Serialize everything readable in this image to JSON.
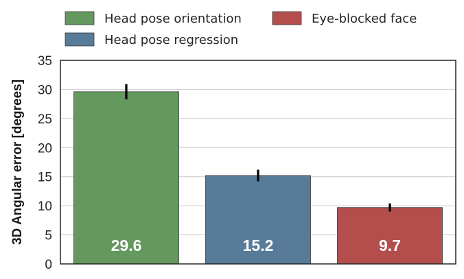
{
  "chart_data": {
    "type": "bar",
    "categories": [
      "Head pose orientation",
      "Head pose regression",
      "Eye-blocked face"
    ],
    "values": [
      29.6,
      15.2,
      9.7
    ],
    "errors": [
      1.3,
      1.0,
      0.7
    ],
    "data_labels": [
      "29.6",
      "15.2",
      "9.7"
    ],
    "colors": [
      "#64985f",
      "#587b99",
      "#b34e4d"
    ],
    "title": "",
    "xlabel": "",
    "ylabel": "3D Angular error [degrees]",
    "ylim": [
      0,
      35
    ],
    "yticks": [
      0,
      5,
      10,
      15,
      20,
      25,
      30,
      35
    ],
    "grid": "horizontal",
    "legend": {
      "placement": "top",
      "entries": [
        "Head pose orientation",
        "Head pose regression",
        "Eye-blocked face"
      ]
    }
  }
}
